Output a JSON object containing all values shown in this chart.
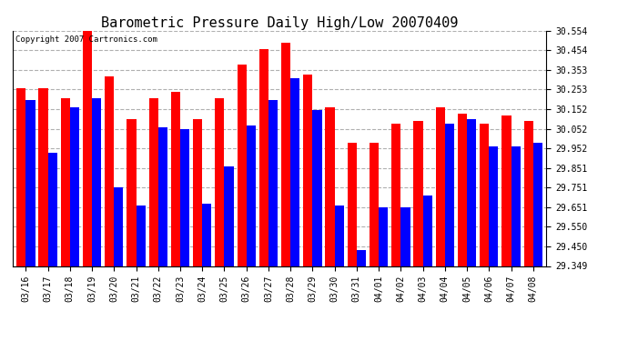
{
  "title": "Barometric Pressure Daily High/Low 20070409",
  "copyright": "Copyright 2007 Cartronics.com",
  "dates": [
    "03/16",
    "03/17",
    "03/18",
    "03/19",
    "03/20",
    "03/21",
    "03/22",
    "03/23",
    "03/24",
    "03/25",
    "03/26",
    "03/27",
    "03/28",
    "03/29",
    "03/30",
    "03/31",
    "04/01",
    "04/02",
    "04/03",
    "04/04",
    "04/05",
    "04/06",
    "04/07",
    "04/08"
  ],
  "highs": [
    30.26,
    30.26,
    30.21,
    30.57,
    30.32,
    30.1,
    30.21,
    30.24,
    30.1,
    30.21,
    30.38,
    30.46,
    30.49,
    30.33,
    30.16,
    29.98,
    29.98,
    30.08,
    30.09,
    30.16,
    30.13,
    30.08,
    30.12,
    30.09
  ],
  "lows": [
    30.2,
    29.93,
    30.16,
    30.21,
    29.75,
    29.66,
    30.06,
    30.05,
    29.67,
    29.86,
    30.07,
    30.2,
    30.31,
    30.15,
    29.66,
    29.43,
    29.65,
    29.65,
    29.71,
    30.08,
    30.1,
    29.96,
    29.96,
    29.98
  ],
  "high_color": "#ff0000",
  "low_color": "#0000ff",
  "bg_color": "#ffffff",
  "plot_bg_color": "#ffffff",
  "grid_color": "#b0b0b0",
  "ymin": 29.349,
  "ymax": 30.554,
  "yticks": [
    29.349,
    29.45,
    29.55,
    29.651,
    29.751,
    29.851,
    29.952,
    30.052,
    30.152,
    30.253,
    30.353,
    30.454,
    30.554
  ],
  "bar_width": 0.42,
  "title_fontsize": 11,
  "tick_fontsize": 7,
  "copyright_fontsize": 6.5
}
